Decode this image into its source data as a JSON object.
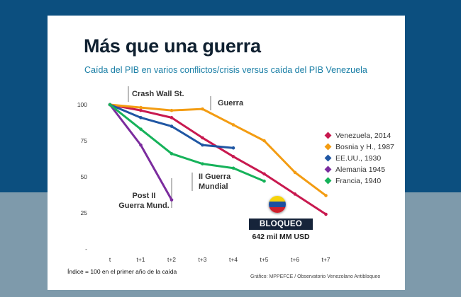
{
  "title": "Más que una guerra",
  "subtitle": "Caída del PIB en varios conflictos/crisis versus caída del PIB Venezuela",
  "footnote": "Índice = 100 en el primer año de la caída",
  "source": "Gráfico: MPPEFCE / Observatorio Venezolano Antibloqueo",
  "bloqueo": {
    "label": "BLOQUEO",
    "amount": "642 mil MM USD"
  },
  "annotations": {
    "crash": "Crash Wall St.",
    "guerra": "Guerra",
    "postwar_1": "Post II",
    "postwar_2": "Guerra Mund.",
    "ww2_1": "II Guerra",
    "ww2_2": "Mundial"
  },
  "chart_data": {
    "type": "line",
    "categories": [
      "t",
      "t+1",
      "t+2",
      "t+3",
      "t+4",
      "t+5",
      "t+6",
      "t+7"
    ],
    "ylim": [
      0,
      100
    ],
    "yticks": [
      "-",
      "25",
      "50",
      "75",
      "100"
    ],
    "ytick_values": [
      0,
      25,
      50,
      75,
      100
    ],
    "legend_position": "right",
    "series": [
      {
        "name": "Venezuela, 2014",
        "color": "#c8194f",
        "values": [
          100,
          96,
          91,
          77,
          64,
          52,
          38,
          24
        ]
      },
      {
        "name": "Bosnia y H., 1987",
        "color": "#f39c12",
        "values": [
          100,
          98,
          96,
          97,
          86,
          75,
          53,
          37
        ]
      },
      {
        "name": "EE.UU., 1930",
        "color": "#1f56a3",
        "values": [
          100,
          91,
          85,
          72,
          70,
          null,
          null,
          null
        ]
      },
      {
        "name": "Alemania 1945",
        "color": "#7b2c9e",
        "values": [
          100,
          72,
          34,
          null,
          null,
          null,
          null,
          null
        ]
      },
      {
        "name": "Francia, 1940",
        "color": "#16b25a",
        "values": [
          100,
          83,
          66,
          59,
          56,
          47,
          null,
          null
        ]
      }
    ]
  }
}
